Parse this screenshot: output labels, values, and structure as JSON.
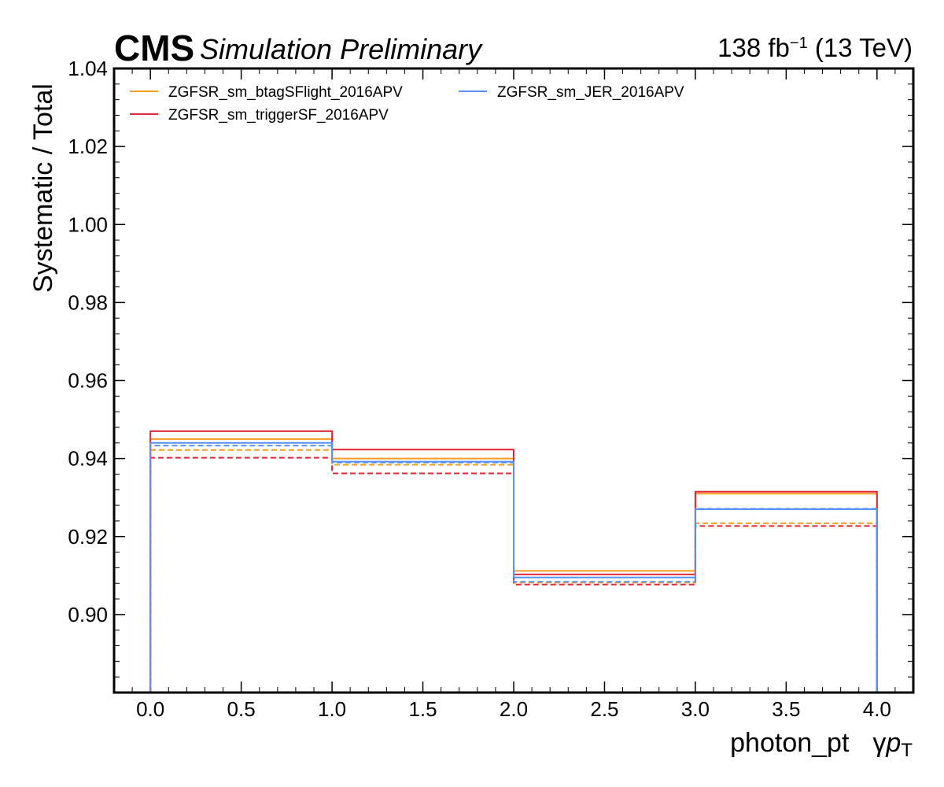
{
  "header": {
    "cms": "CMS",
    "subtitle": "Simulation Preliminary",
    "lumi_value": "138 fb",
    "lumi_exponent": "−1",
    "lumi_energy": " (13 TeV)"
  },
  "colors": {
    "btagSFlight": "#f89c20",
    "triggerSF": "#e42536",
    "JER": "#5790fc"
  },
  "chart_data": {
    "type": "line",
    "style": "step-histogram",
    "xlabel": "photon_pt",
    "xlabel_symbol_prefix": "γ",
    "xlabel_symbol_p": "p",
    "xlabel_symbol_sub": "T",
    "ylabel": "Systematic / Total",
    "xlim": [
      -0.2,
      4.2
    ],
    "ylim": [
      0.88,
      1.04
    ],
    "bin_edges": [
      0,
      1,
      2,
      3,
      4
    ],
    "x_ticks": [
      "0.0",
      "0.5",
      "1.0",
      "1.5",
      "2.0",
      "2.5",
      "3.0",
      "3.5",
      "4.0"
    ],
    "y_ticks": [
      "0.90",
      "0.92",
      "0.94",
      "0.96",
      "0.98",
      "1.00",
      "1.02",
      "1.04"
    ],
    "legend_position": "top-left",
    "series": [
      {
        "name": "ZGFSR_sm_btagSFlight_2016APV",
        "color_key": "btagSFlight",
        "variation": "up",
        "dashed": false,
        "values": [
          0.945,
          0.94,
          0.9112,
          0.931
        ]
      },
      {
        "name": "ZGFSR_sm_btagSFlight_2016APV",
        "color_key": "btagSFlight",
        "variation": "down",
        "dashed": true,
        "values": [
          0.9422,
          0.9384,
          0.9082,
          0.9234
        ]
      },
      {
        "name": "ZGFSR_sm_triggerSF_2016APV",
        "color_key": "triggerSF",
        "variation": "up",
        "dashed": false,
        "values": [
          0.947,
          0.9423,
          0.9103,
          0.9315
        ]
      },
      {
        "name": "ZGFSR_sm_triggerSF_2016APV",
        "color_key": "triggerSF",
        "variation": "down",
        "dashed": true,
        "values": [
          0.9402,
          0.9362,
          0.9077,
          0.9227
        ]
      },
      {
        "name": "ZGFSR_sm_JER_2016APV",
        "color_key": "JER",
        "variation": "up",
        "dashed": false,
        "values": [
          0.944,
          0.9392,
          0.9095,
          0.927
        ]
      },
      {
        "name": "ZGFSR_sm_JER_2016APV",
        "color_key": "JER",
        "variation": "down",
        "dashed": true,
        "values": [
          0.9433,
          0.939,
          0.9084,
          0.9271
        ]
      }
    ],
    "legend": [
      {
        "label": "ZGFSR_sm_btagSFlight_2016APV",
        "color_key": "btagSFlight"
      },
      {
        "label": "ZGFSR_sm_triggerSF_2016APV",
        "color_key": "triggerSF"
      },
      {
        "label": "ZGFSR_sm_JER_2016APV",
        "color_key": "JER"
      }
    ]
  }
}
